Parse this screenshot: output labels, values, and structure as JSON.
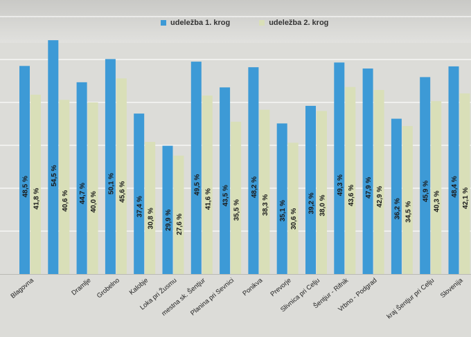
{
  "colors": {
    "series1": "#3d9ad6",
    "series2": "#d9dfb8",
    "grid": "#ffffff",
    "label": "#1a1a1a",
    "background": "#dcdcd8"
  },
  "legend": {
    "series1": "udeležba 1. krog",
    "series2": "udeležba 2. krog",
    "placement": "top"
  },
  "chart_data": {
    "type": "bar",
    "title": "",
    "xlabel": "",
    "ylabel": "",
    "ylim": [
      0,
      60
    ],
    "grid": true,
    "categories": [
      "Blagovna",
      "",
      "Dramlje",
      "Grobelno",
      "Kalobje",
      "Loka pri Žusmu",
      "mestna sk. Šentjur",
      "Planina pri Sevnici",
      "Ponikva",
      "Prevorje",
      "Slivnica pri Celju",
      "Šentjur - Rifnik",
      "Vrbno - Podgrad",
      "",
      "kraj Šentjur pri Celju",
      "Slovenija"
    ],
    "series": [
      {
        "name": "udeležba 1. krog",
        "values": [
          48.5,
          54.5,
          44.7,
          50.1,
          37.4,
          29.9,
          49.5,
          43.5,
          48.2,
          35.1,
          39.2,
          49.3,
          47.9,
          36.2,
          45.9,
          48.4
        ],
        "labels": [
          "48,5 %",
          "54,5 %",
          "44,7 %",
          "50,1 %",
          "37,4 %",
          "29,9 %",
          "49,5 %",
          "43,5 %",
          "48,2 %",
          "35,1 %",
          "39,2 %",
          "49,3 %",
          "47,9 %",
          "36,2 %",
          "45,9 %",
          "48,4 %"
        ]
      },
      {
        "name": "udeležba 2. krog",
        "values": [
          41.8,
          40.6,
          40.0,
          45.6,
          30.8,
          27.6,
          41.6,
          35.5,
          38.3,
          30.6,
          38.0,
          43.6,
          42.9,
          34.5,
          40.3,
          42.1
        ],
        "labels": [
          "41,8 %",
          "40,6 %",
          "40,0 %",
          "45,6 %",
          "30,8 %",
          "27,6 %",
          "41,6 %",
          "35,5 %",
          "38,3 %",
          "30,6 %",
          "38,0 %",
          "43,6 %",
          "42,9 %",
          "34,5 %",
          "40,3 %",
          "42,1 %"
        ]
      }
    ]
  }
}
